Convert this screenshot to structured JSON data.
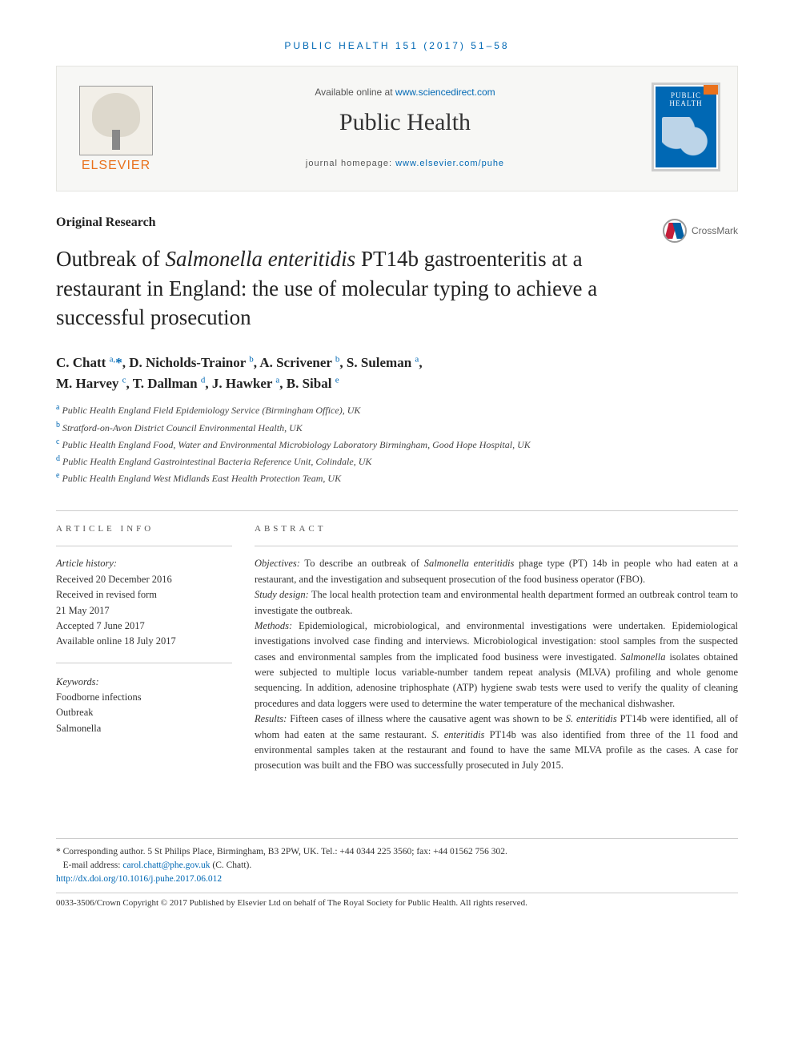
{
  "running_head": "PUBLIC HEALTH 151 (2017) 51–58",
  "header": {
    "available_prefix": "Available online at ",
    "available_url": "www.sciencedirect.com",
    "journal_title": "Public Health",
    "homepage_prefix": "journal homepage: ",
    "homepage_url": "www.elsevier.com/puhe",
    "publisher_name": "ELSEVIER",
    "cover_text": "PUBLIC HEALTH"
  },
  "section_label": "Original Research",
  "crossmark_label": "CrossMark",
  "title_html": "Outbreak of <em>Salmonella enteritidis</em> PT14b gastroenteritis at a restaurant in England: the use of molecular typing to achieve a successful prosecution",
  "authors_html": "C. Chatt <sup>a,</sup><span class='ast'>*</span>, D. Nicholds-Trainor <sup>b</sup>, A. Scrivener <sup>b</sup>, S. Suleman <sup>a</sup>,<br>M. Harvey <sup>c</sup>, T. Dallman <sup>d</sup>, J. Hawker <sup>a</sup>, B. Sibal <sup>e</sup>",
  "affiliations": [
    {
      "marker": "a",
      "text": "Public Health England Field Epidemiology Service (Birmingham Office), UK"
    },
    {
      "marker": "b",
      "text": "Stratford-on-Avon District Council Environmental Health, UK"
    },
    {
      "marker": "c",
      "text": "Public Health England Food, Water and Environmental Microbiology Laboratory Birmingham, Good Hope Hospital, UK"
    },
    {
      "marker": "d",
      "text": "Public Health England Gastrointestinal Bacteria Reference Unit, Colindale, UK"
    },
    {
      "marker": "e",
      "text": "Public Health England West Midlands East Health Protection Team, UK"
    }
  ],
  "info_head": "ARTICLE INFO",
  "abstract_head": "ABSTRACT",
  "history": {
    "heading": "Article history:",
    "lines": [
      "Received 20 December 2016",
      "Received in revised form",
      "21 May 2017",
      "Accepted 7 June 2017",
      "Available online 18 July 2017"
    ]
  },
  "keywords": {
    "heading": "Keywords:",
    "items": [
      "Foodborne infections",
      "Outbreak",
      "Salmonella"
    ]
  },
  "abstract_html": "<em>Objectives:</em> To describe an outbreak of <em>Salmonella enteritidis</em> phage type (PT) 14b in people who had eaten at a restaurant, and the investigation and subsequent prosecution of the food business operator (FBO).<br><em>Study design:</em> The local health protection team and environmental health department formed an outbreak control team to investigate the outbreak.<br><em>Methods:</em> Epidemiological, microbiological, and environmental investigations were undertaken. Epidemiological investigations involved case finding and interviews. Microbiological investigation: stool samples from the suspected cases and environmental samples from the implicated food business were investigated. <em>Salmonella</em> isolates obtained were subjected to multiple locus variable-number tandem repeat analysis (MLVA) profiling and whole genome sequencing. In addition, adenosine triphosphate (ATP) hygiene swab tests were used to verify the quality of cleaning procedures and data loggers were used to determine the water temperature of the mechanical dishwasher.<br><em>Results:</em> Fifteen cases of illness where the causative agent was shown to be <em>S. enteritidis</em> PT14b were identified, all of whom had eaten at the same restaurant. <em>S. enteritidis</em> PT14b was also identified from three of the 11 food and environmental samples taken at the restaurant and found to have the same MLVA profile as the cases. A case for prosecution was built and the FBO was successfully prosecuted in July 2015.",
  "footer": {
    "corresponding": "* Corresponding author. 5 St Philips Place, Birmingham, B3 2PW, UK. Tel.: +44 0344 225 3560; fax: +44 01562 756 302.",
    "email_label": "E-mail address: ",
    "email": "carol.chatt@phe.gov.uk",
    "email_suffix": " (C. Chatt).",
    "doi": "http://dx.doi.org/10.1016/j.puhe.2017.06.012",
    "copyright": "0033-3506/Crown Copyright © 2017 Published by Elsevier Ltd on behalf of The Royal Society for Public Health. All rights reserved."
  },
  "colors": {
    "link": "#0068b4",
    "accent": "#e9711c",
    "rule": "#cccccc",
    "card_bg": "#f7f7f5"
  }
}
